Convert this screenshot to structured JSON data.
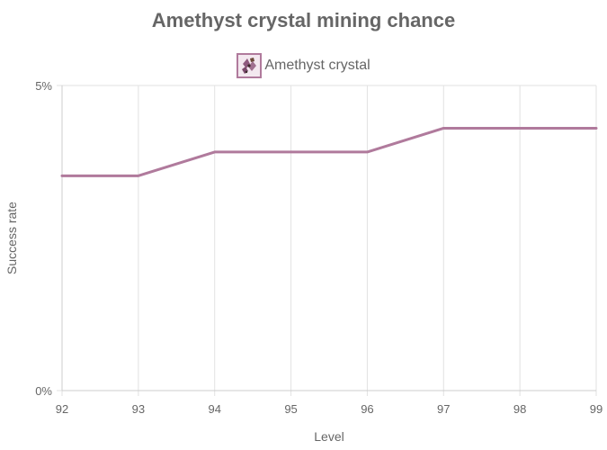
{
  "chart_data": {
    "type": "line",
    "title": "Amethyst crystal mining chance",
    "xlabel": "Level",
    "ylabel": "Success rate",
    "x": [
      92,
      93,
      94,
      95,
      96,
      97,
      98,
      99
    ],
    "xtick_labels": [
      "92",
      "93",
      "94",
      "95",
      "96",
      "97",
      "98",
      "99"
    ],
    "ytick_labels": [
      "0%",
      "5%"
    ],
    "ylim": [
      0,
      5
    ],
    "series": [
      {
        "name": "Amethyst crystal",
        "color": "#b07a9c",
        "values": [
          3.52,
          3.52,
          3.91,
          3.91,
          3.91,
          4.3,
          4.3,
          4.3
        ]
      }
    ],
    "legend_position": "top-center",
    "legend_icon": "amethyst-crystal-icon",
    "grid": true
  }
}
